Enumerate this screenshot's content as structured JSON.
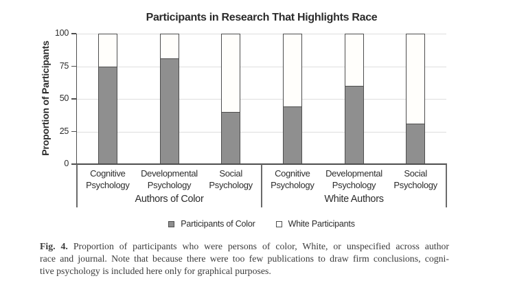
{
  "chart_data": {
    "type": "bar",
    "stacked": true,
    "title": "Participants in Research That Highlights Race",
    "ylabel": "Proportion of Participants",
    "ylim": [
      0,
      100
    ],
    "yticks": [
      0,
      25,
      50,
      75,
      100
    ],
    "grid": true,
    "legend_position": "bottom",
    "groups": [
      {
        "label": "Authors of Color",
        "categories": [
          "Cognitive Psychology",
          "Developmental Psychology",
          "Social Psychology"
        ]
      },
      {
        "label": "White Authors",
        "categories": [
          "Cognitive Psychology",
          "Developmental Psychology",
          "Social Psychology"
        ]
      }
    ],
    "series": [
      {
        "name": "Participants of Color",
        "swatch": "filled-square",
        "color": "#8f8f8f",
        "values": [
          75,
          81,
          40,
          44,
          60,
          31
        ]
      },
      {
        "name": "White Participants",
        "swatch": "open-square",
        "color": "#fffefb",
        "values": [
          25,
          19,
          60,
          56,
          40,
          69
        ]
      }
    ],
    "colors": {
      "bar_fill_gray": "#8f8f8f",
      "bar_fill_white": "#fffefb",
      "bar_border": "#4d4d4d",
      "gridline": "#dedede",
      "axis": "#4d4d4d",
      "text": "#2b2b2b"
    }
  },
  "figure": {
    "caption_label": "Fig. 4.",
    "caption_lines": [
      "Proportion of participants who were persons of color, White, or unspecified across author",
      "race and journal. Note that because there were too few publications to draw firm conclusions, cogni-",
      "tive psychology is included here only for graphical purposes."
    ]
  }
}
